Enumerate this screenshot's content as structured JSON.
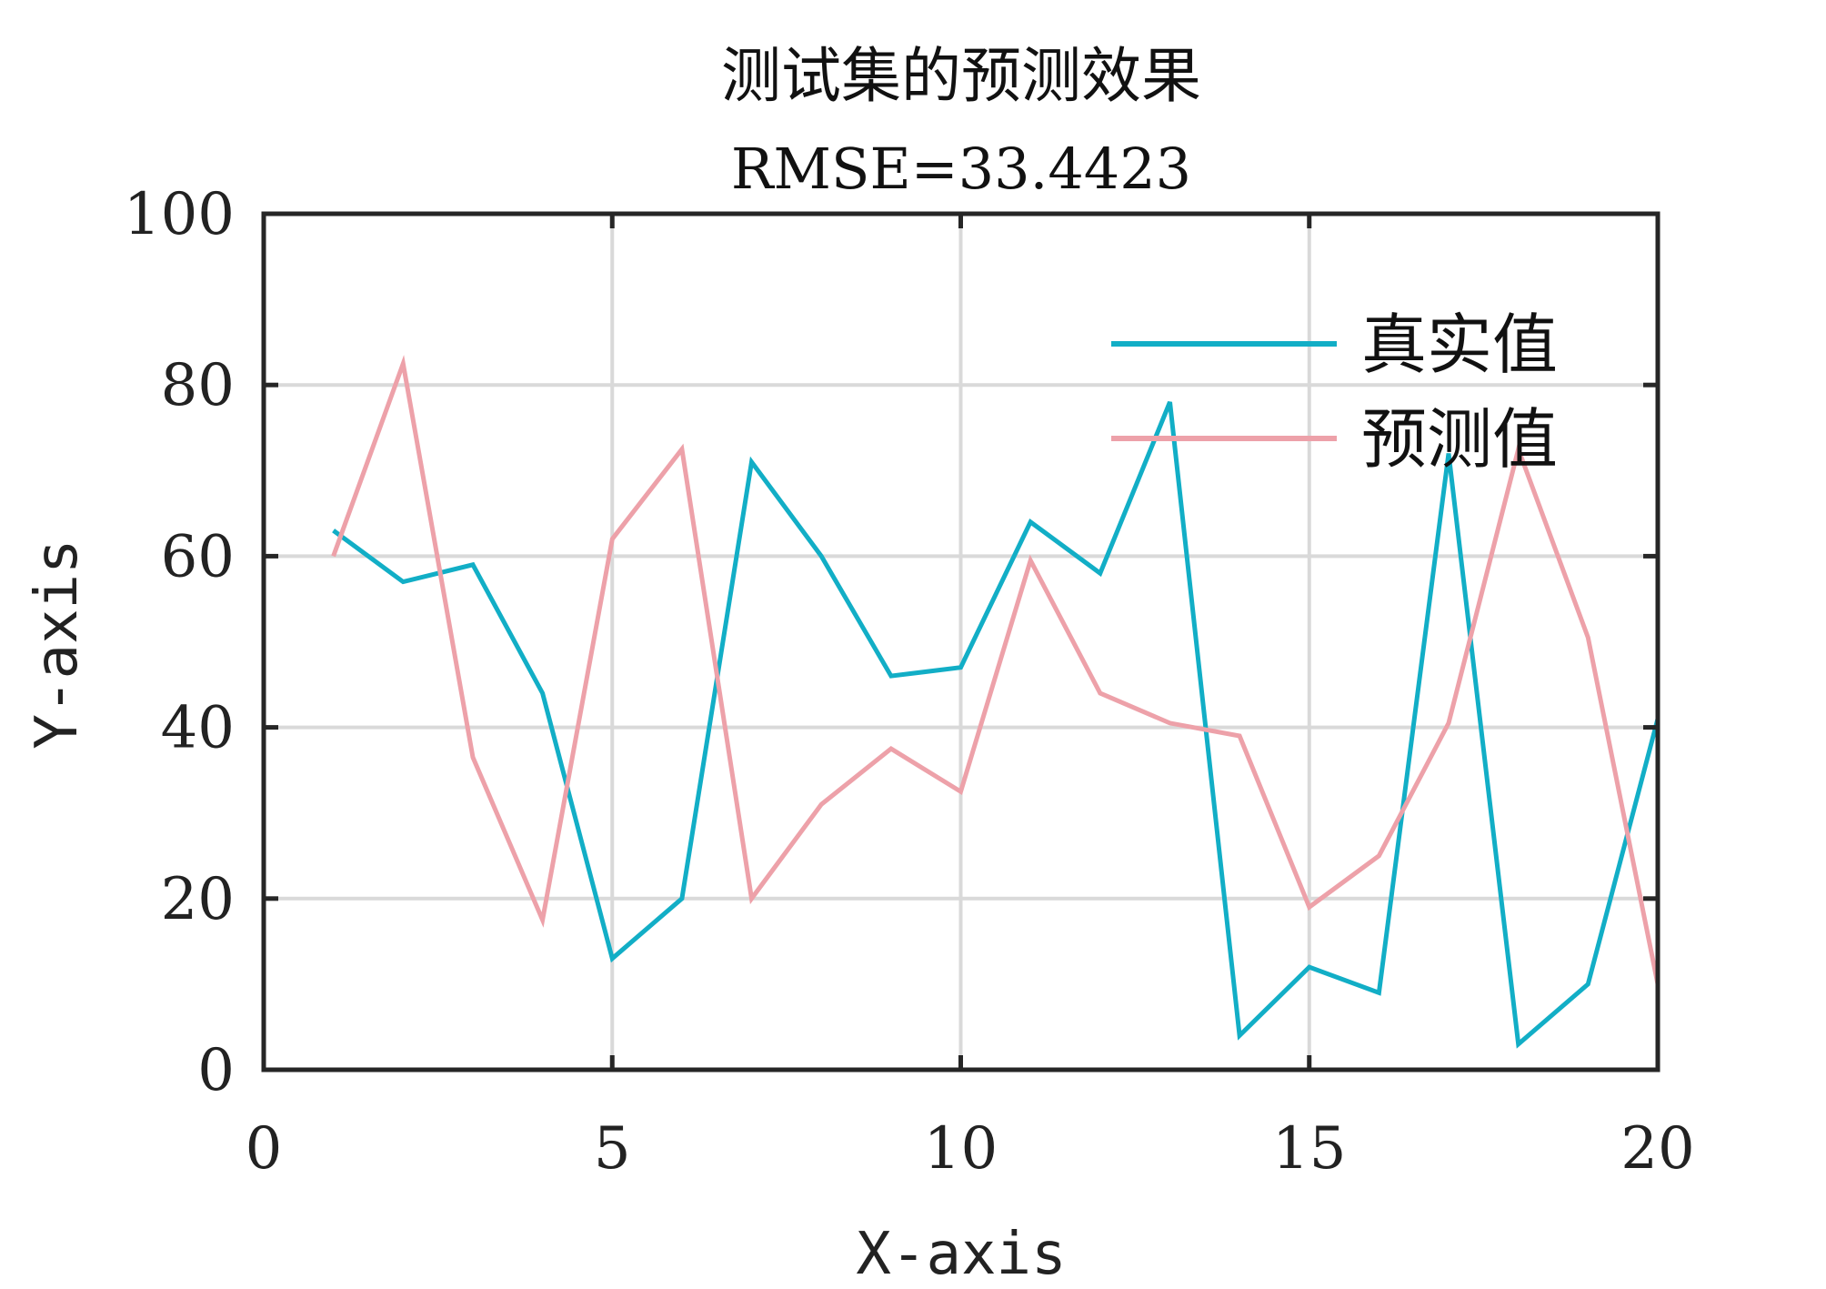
{
  "chart_data": {
    "type": "line",
    "title": "测试集的预测效果",
    "subtitle": "RMSE=33.4423",
    "xlabel": "X-axis",
    "ylabel": "Y-axis",
    "xlim": [
      0,
      20
    ],
    "ylim": [
      0,
      100
    ],
    "xticks": [
      "0",
      "5",
      "10",
      "15",
      "20"
    ],
    "yticks": [
      "0",
      "20",
      "40",
      "60",
      "80",
      "100"
    ],
    "grid": true,
    "legend_position": "top-right",
    "x": [
      1,
      2,
      3,
      4,
      5,
      6,
      7,
      8,
      9,
      10,
      11,
      12,
      13,
      14,
      15,
      16,
      17,
      18,
      19,
      20
    ],
    "series": [
      {
        "name": "真实值",
        "color": "#12AEC6",
        "values": [
          63,
          57,
          59,
          44,
          13,
          20,
          71,
          60,
          46,
          47,
          64,
          58,
          78,
          4,
          12,
          9,
          72,
          3,
          10,
          41
        ]
      },
      {
        "name": "预测值",
        "color": "#EDA1A9",
        "values": [
          60,
          82.5,
          36.5,
          17.5,
          62,
          72.5,
          20,
          31,
          37.5,
          32.5,
          59.5,
          44,
          40.5,
          39,
          19,
          25,
          40.5,
          72.5,
          50.5,
          10
        ]
      }
    ]
  }
}
